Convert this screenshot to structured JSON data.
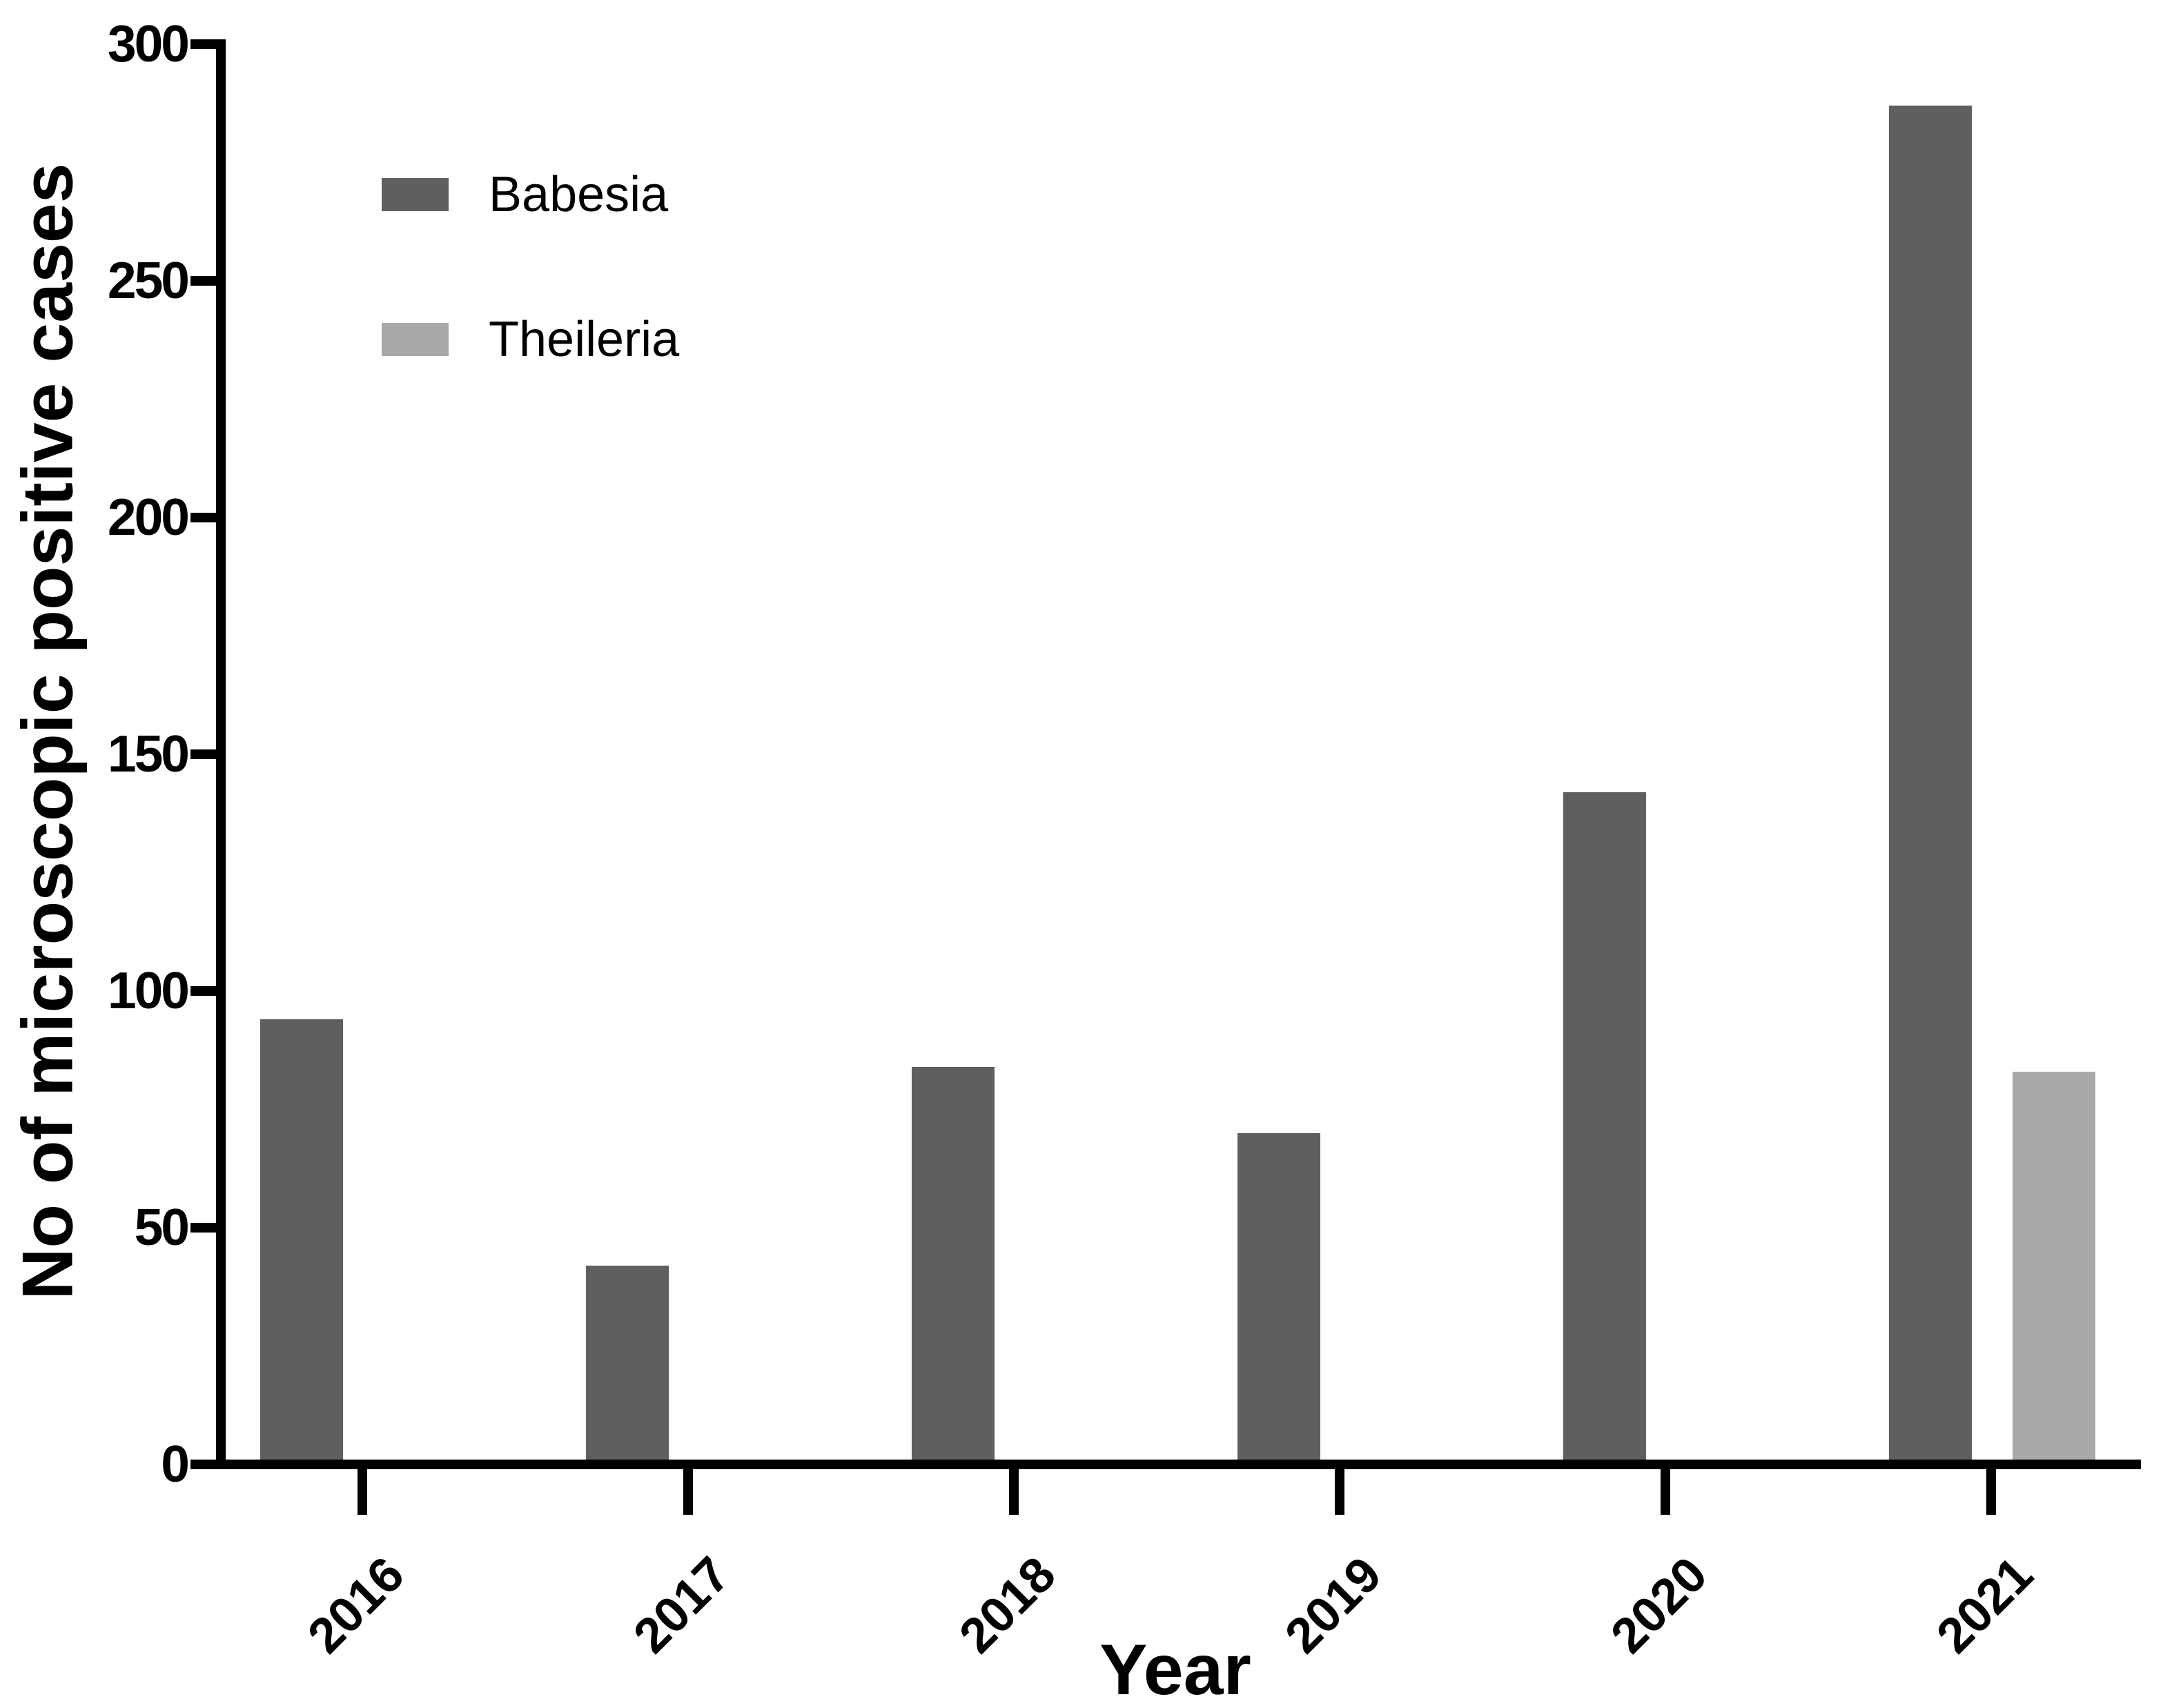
{
  "chart_data": {
    "type": "bar",
    "title": "",
    "categories": [
      "2016",
      "2017",
      "2018",
      "2019",
      "2020",
      "2021"
    ],
    "series": [
      {
        "name": "Babesia",
        "color": "#5f5f5f",
        "values": [
          94,
          42,
          84,
          70,
          142,
          287
        ]
      },
      {
        "name": "Theileria",
        "color": "#a9a9a9",
        "values": [
          0,
          0,
          0,
          0,
          0,
          83
        ]
      }
    ],
    "xlabel": "Year",
    "ylabel": "No of microscopic positive cases",
    "ylim": [
      0,
      300
    ],
    "yticks": [
      0,
      50,
      100,
      150,
      200,
      250,
      300
    ],
    "grid": false,
    "legend_position": "top-left-inside",
    "axis_color": "#000000",
    "text_color": "#000000",
    "background_color": "#ffffff"
  }
}
